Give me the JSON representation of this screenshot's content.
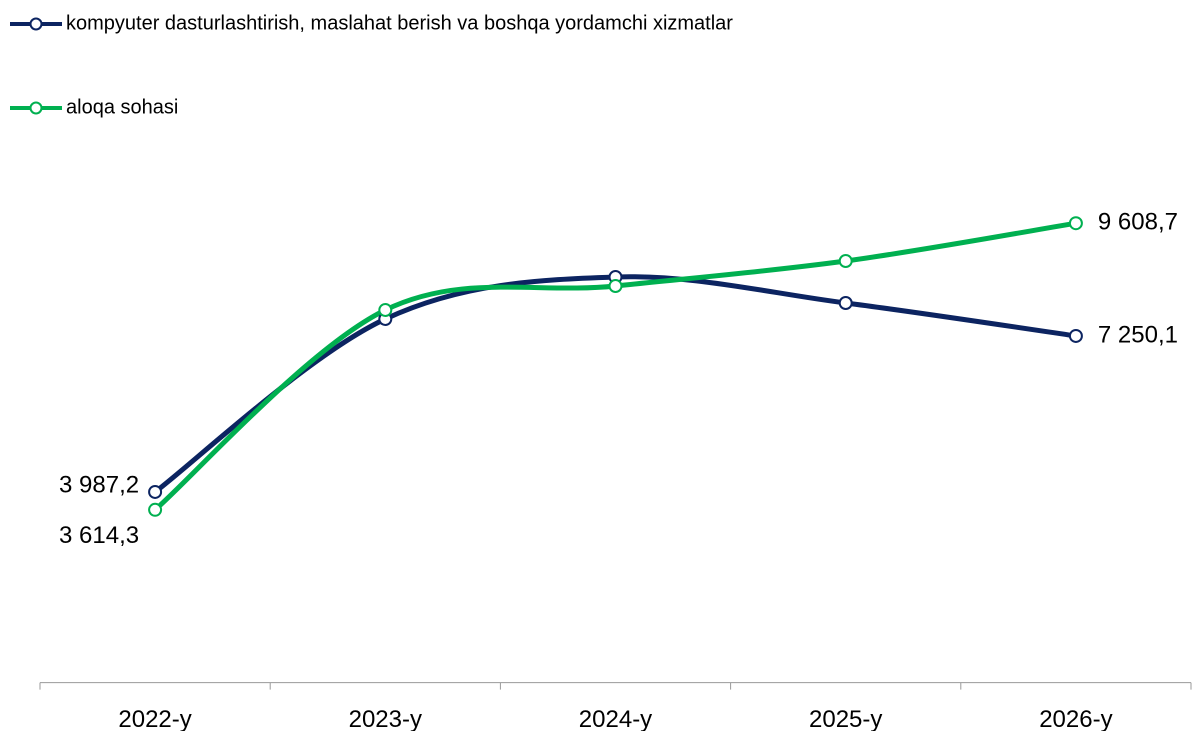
{
  "chart_data": {
    "type": "line",
    "categories": [
      "2022-y",
      "2023-y",
      "2024-y",
      "2025-y",
      "2026-y"
    ],
    "series": [
      {
        "name": "kompyuter dasturlashtirish, maslahat berish va boshqa yordamchi xizmatlar",
        "color": "#0c2461",
        "values": [
          3987.2,
          7605,
          8484,
          7940,
          7250.1
        ],
        "value_labels": [
          "3 987,2",
          null,
          null,
          null,
          "7 250,1"
        ]
      },
      {
        "name": "aloqa sohasi",
        "color": "#00b050",
        "values": [
          3614.3,
          7793,
          8295,
          8818,
          9608.7
        ],
        "value_labels": [
          "3 614,3",
          null,
          null,
          null,
          "9 608,7"
        ]
      }
    ],
    "ylim": [
      0,
      10000
    ]
  }
}
